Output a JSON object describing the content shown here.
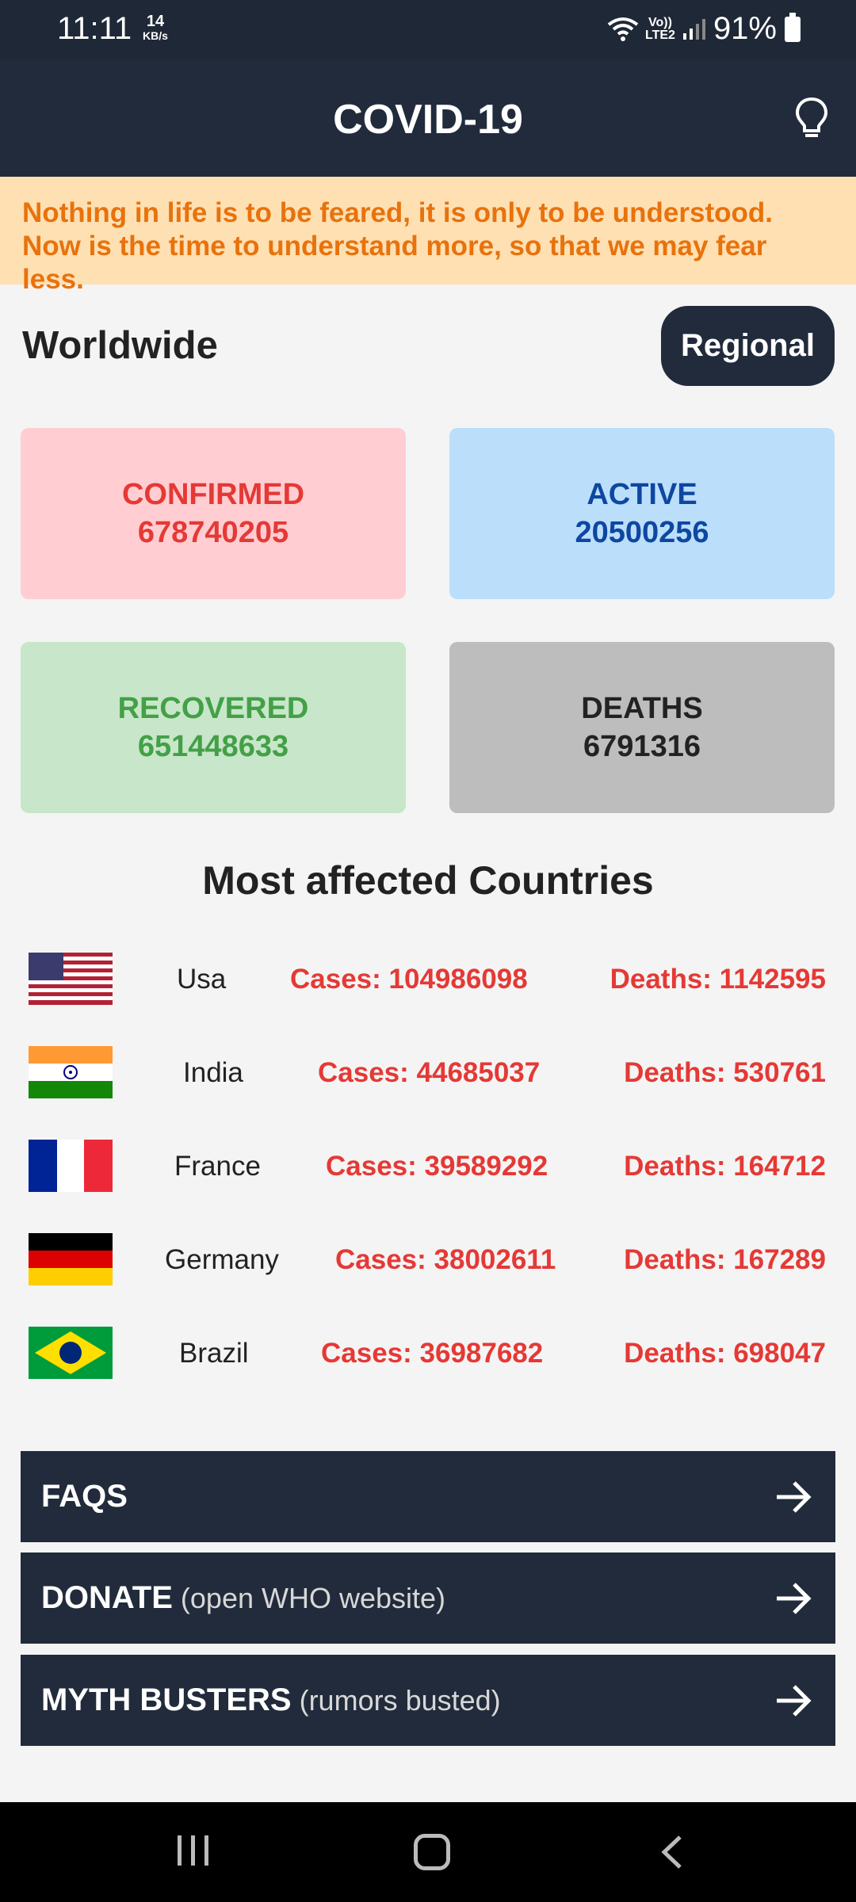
{
  "status": {
    "time": "11:11",
    "speed": "14",
    "speed_unit": "KB/s",
    "network": "Vo))",
    "network2": "LTE2",
    "battery": "91%"
  },
  "app": {
    "title": "COVID-19"
  },
  "quote": "Nothing in life is to be feared, it is only to be understood. Now is the time to understand more, so that we may fear less.",
  "worldwide": {
    "title": "Worldwide",
    "regional_label": "Regional",
    "confirmed": {
      "label": "CONFIRMED",
      "value": "678740205"
    },
    "active": {
      "label": "ACTIVE",
      "value": "20500256"
    },
    "recovered": {
      "label": "RECOVERED",
      "value": "651448633"
    },
    "deaths": {
      "label": "DEATHS",
      "value": "6791316"
    }
  },
  "countries": {
    "title": "Most affected Countries",
    "items": [
      {
        "name": "Usa",
        "cases": "Cases: 104986098",
        "deaths": "Deaths: 1142595",
        "flag": "us-flag"
      },
      {
        "name": "India",
        "cases": "Cases: 44685037",
        "deaths": "Deaths: 530761",
        "flag": "india-flag"
      },
      {
        "name": "France",
        "cases": "Cases: 39589292",
        "deaths": "Deaths: 164712",
        "flag": "france-flag"
      },
      {
        "name": "Germany",
        "cases": "Cases: 38002611",
        "deaths": "Deaths: 167289",
        "flag": "germany-flag"
      },
      {
        "name": "Brazil",
        "cases": "Cases: 36987682",
        "deaths": "Deaths: 698047",
        "flag": "brazil-flag"
      }
    ]
  },
  "links": {
    "faqs": {
      "label": "FAQS",
      "sub": ""
    },
    "donate": {
      "label": "DONATE",
      "sub": "(open WHO website)"
    },
    "myth": {
      "label": "MYTH BUSTERS",
      "sub": "(rumors busted)"
    }
  }
}
